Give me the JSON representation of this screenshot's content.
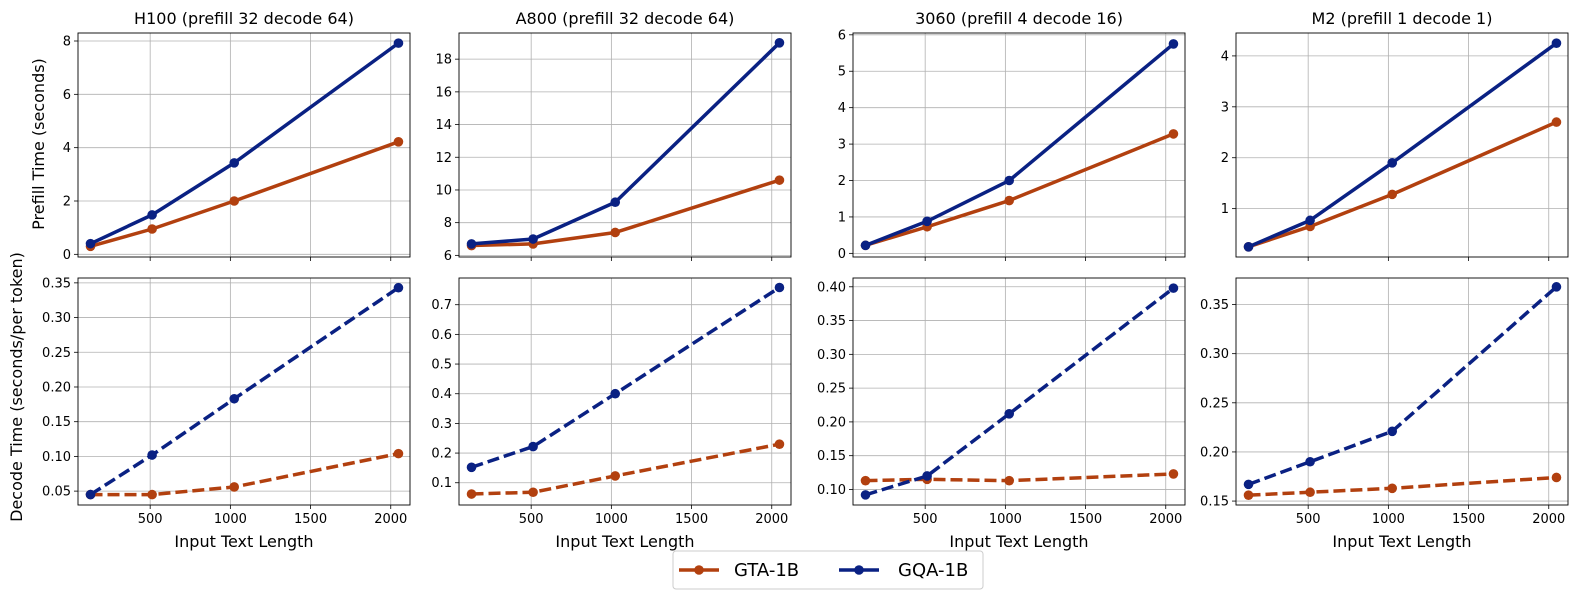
{
  "legend": {
    "series": [
      "GTA-1B",
      "GQA-1B"
    ],
    "placement": "bottom-center"
  },
  "shared_labels": {
    "xlabel": "Input Text Length",
    "ylabel_top": "Prefill Time (seconds)",
    "ylabel_bottom": "Decode Time (seconds/per token)"
  },
  "colors": {
    "GTA-1B": "#b2400f",
    "GQA-1B": "#0a2183"
  },
  "chart_data": [
    {
      "type": "line",
      "title": "H100 (prefill 32 decode 64)",
      "ylabel": "Prefill Time (seconds)",
      "xlabel": "",
      "x": [
        128,
        512,
        1024,
        2048
      ],
      "xlim": [
        50,
        2120
      ],
      "ylim": [
        -0.1,
        8.3
      ],
      "yticks": [
        0,
        2,
        4,
        6,
        8
      ],
      "xticks": [
        500,
        1000,
        1500,
        2000
      ],
      "grid": true,
      "linestyle": "solid",
      "series": [
        {
          "name": "GTA-1B",
          "values": [
            0.3,
            0.95,
            2.0,
            4.22
          ]
        },
        {
          "name": "GQA-1B",
          "values": [
            0.4,
            1.48,
            3.43,
            7.92
          ]
        }
      ]
    },
    {
      "type": "line",
      "title": "A800 (prefill 32 decode 64)",
      "ylabel": "",
      "xlabel": "",
      "x": [
        128,
        512,
        1024,
        2048
      ],
      "xlim": [
        50,
        2120
      ],
      "ylim": [
        5.9,
        19.6
      ],
      "yticks": [
        6,
        8,
        10,
        12,
        14,
        16,
        18
      ],
      "xticks": [
        500,
        1000,
        1500,
        2000
      ],
      "grid": true,
      "linestyle": "solid",
      "series": [
        {
          "name": "GTA-1B",
          "values": [
            6.6,
            6.7,
            7.4,
            10.6
          ]
        },
        {
          "name": "GQA-1B",
          "values": [
            6.7,
            7.0,
            9.25,
            19.0
          ]
        }
      ]
    },
    {
      "type": "line",
      "title": "3060 (prefill 4 decode 16)",
      "ylabel": "",
      "xlabel": "",
      "x": [
        128,
        512,
        1024,
        2048
      ],
      "xlim": [
        50,
        2120
      ],
      "ylim": [
        -0.1,
        6.05
      ],
      "yticks": [
        0,
        1,
        2,
        3,
        4,
        5,
        6
      ],
      "xticks": [
        500,
        1000,
        1500,
        2000
      ],
      "grid": true,
      "linestyle": "solid",
      "series": [
        {
          "name": "GTA-1B",
          "values": [
            0.22,
            0.73,
            1.45,
            3.28
          ]
        },
        {
          "name": "GQA-1B",
          "values": [
            0.22,
            0.88,
            2.0,
            5.75
          ]
        }
      ]
    },
    {
      "type": "line",
      "title": "M2 (prefill 1 decode 1)",
      "ylabel": "",
      "xlabel": "",
      "x": [
        128,
        512,
        1024,
        2048
      ],
      "xlim": [
        50,
        2120
      ],
      "ylim": [
        0.05,
        4.45
      ],
      "yticks": [
        1,
        2,
        3,
        4
      ],
      "xticks": [
        500,
        1000,
        1500,
        2000
      ],
      "grid": true,
      "linestyle": "solid",
      "series": [
        {
          "name": "GTA-1B",
          "values": [
            0.25,
            0.65,
            1.28,
            2.7
          ]
        },
        {
          "name": "GQA-1B",
          "values": [
            0.25,
            0.77,
            1.9,
            4.25
          ]
        }
      ]
    },
    {
      "type": "line",
      "title": "",
      "ylabel": "Decode Time (seconds/per token)",
      "xlabel": "Input Text Length",
      "x": [
        128,
        512,
        1024,
        2048
      ],
      "xlim": [
        50,
        2120
      ],
      "ylim": [
        0.03,
        0.357
      ],
      "yticks": [
        0.05,
        0.1,
        0.15,
        0.2,
        0.25,
        0.3,
        0.35
      ],
      "xticks": [
        500,
        1000,
        1500,
        2000
      ],
      "grid": true,
      "linestyle": "dashed",
      "series": [
        {
          "name": "GTA-1B",
          "values": [
            0.045,
            0.045,
            0.056,
            0.104
          ]
        },
        {
          "name": "GQA-1B",
          "values": [
            0.045,
            0.102,
            0.183,
            0.343
          ]
        }
      ]
    },
    {
      "type": "line",
      "title": "",
      "ylabel": "",
      "xlabel": "Input Text Length",
      "x": [
        128,
        512,
        1024,
        2048
      ],
      "xlim": [
        50,
        2120
      ],
      "ylim": [
        0.025,
        0.79
      ],
      "yticks": [
        0.1,
        0.2,
        0.3,
        0.4,
        0.5,
        0.6,
        0.7
      ],
      "xticks": [
        500,
        1000,
        1500,
        2000
      ],
      "grid": true,
      "linestyle": "dashed",
      "series": [
        {
          "name": "GTA-1B",
          "values": [
            0.062,
            0.068,
            0.123,
            0.23
          ]
        },
        {
          "name": "GQA-1B",
          "values": [
            0.152,
            0.222,
            0.4,
            0.758
          ]
        }
      ]
    },
    {
      "type": "line",
      "title": "",
      "ylabel": "",
      "xlabel": "Input Text Length",
      "x": [
        128,
        512,
        1024,
        2048
      ],
      "xlim": [
        50,
        2120
      ],
      "ylim": [
        0.077,
        0.413
      ],
      "yticks": [
        0.1,
        0.15,
        0.2,
        0.25,
        0.3,
        0.35,
        0.4
      ],
      "xticks": [
        500,
        1000,
        1500,
        2000
      ],
      "grid": true,
      "linestyle": "dashed",
      "series": [
        {
          "name": "GTA-1B",
          "values": [
            0.113,
            0.115,
            0.113,
            0.123
          ]
        },
        {
          "name": "GQA-1B",
          "values": [
            0.092,
            0.12,
            0.212,
            0.398
          ]
        }
      ]
    },
    {
      "type": "line",
      "title": "",
      "ylabel": "",
      "xlabel": "Input Text Length",
      "x": [
        128,
        512,
        1024,
        2048
      ],
      "xlim": [
        50,
        2120
      ],
      "ylim": [
        0.146,
        0.377
      ],
      "yticks": [
        0.15,
        0.2,
        0.25,
        0.3,
        0.35
      ],
      "xticks": [
        500,
        1000,
        1500,
        2000
      ],
      "grid": true,
      "linestyle": "dashed",
      "series": [
        {
          "name": "GTA-1B",
          "values": [
            0.156,
            0.159,
            0.163,
            0.174
          ]
        },
        {
          "name": "GQA-1B",
          "values": [
            0.167,
            0.19,
            0.221,
            0.368
          ]
        }
      ]
    }
  ]
}
